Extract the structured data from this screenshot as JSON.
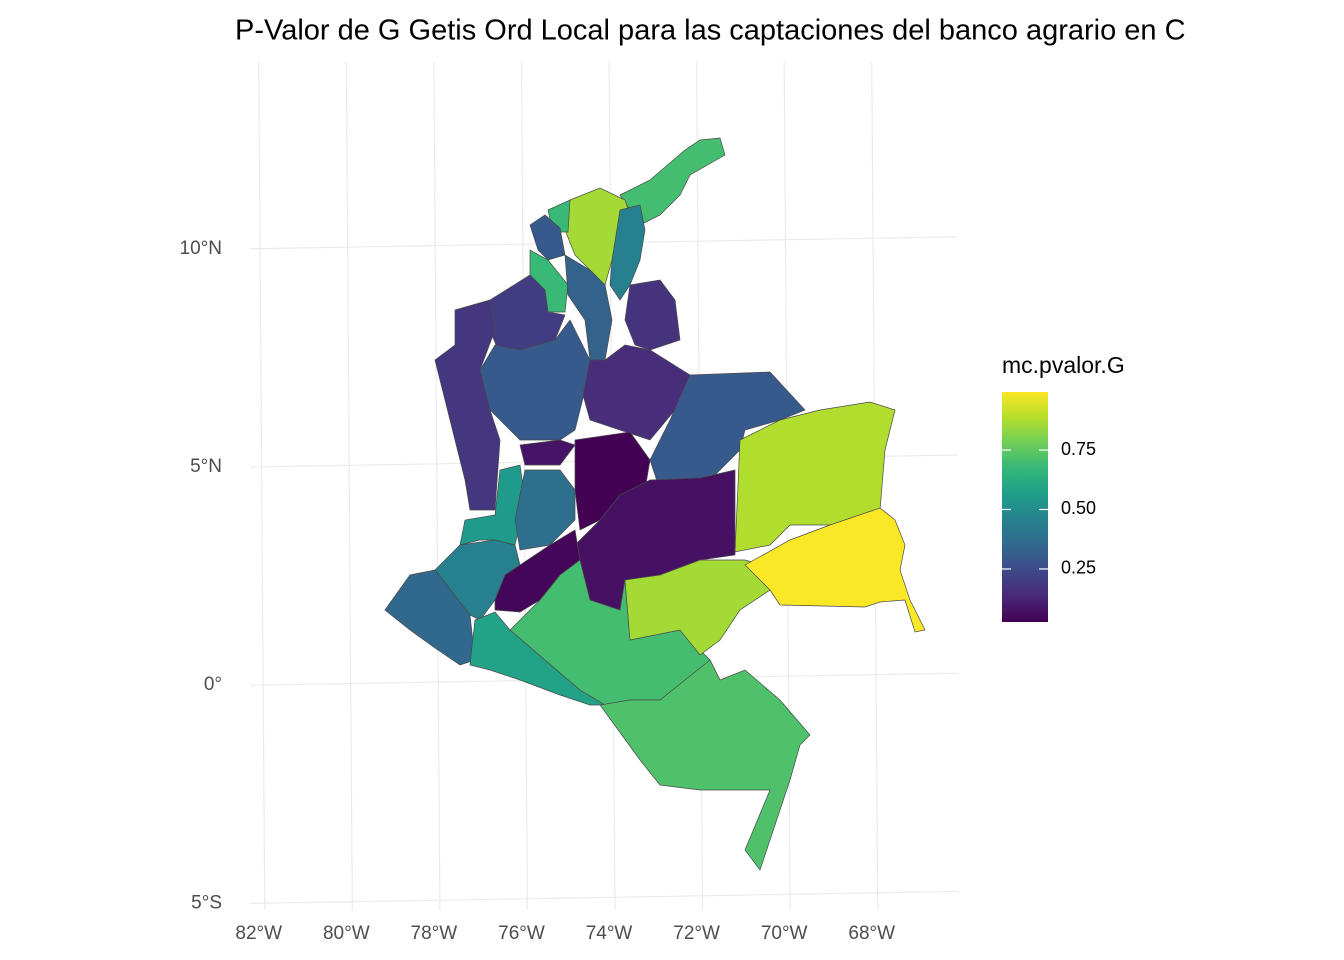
{
  "chart_data": {
    "type": "choropleth",
    "title": "P-Valor de G Getis Ord Local para las captaciones del banco agrario en C",
    "values": [
      0.7,
      0.86,
      0.45,
      0.68,
      0.3,
      0.68,
      0.33,
      0.2,
      0.17,
      0.18,
      0.3,
      0.15,
      0.3,
      0.88,
      0.03,
      0.08,
      0.55,
      0.38,
      0.07,
      0.04,
      0.45,
      0.35,
      0.58,
      0.7,
      0.86,
      0.99,
      0.72
    ],
    "colormap": "viridis",
    "clim": [
      0.027,
      0.994
    ],
    "legend_title": "mc.pvalor.G",
    "legend_ticks": [
      0.25,
      {
        "value": 0.5,
        "label": "0.50"
      },
      0.75
    ],
    "xlim": [
      -82.2,
      -66.03
    ],
    "ylim": [
      -5.15,
      14.28
    ],
    "xticks": [
      {
        "value": -82,
        "label": "82°W"
      },
      {
        "value": -80,
        "label": "80°W"
      },
      {
        "value": -78,
        "label": "78°W"
      },
      {
        "value": -76,
        "label": "76°W"
      },
      {
        "value": -74,
        "label": "74°W"
      },
      {
        "value": -72,
        "label": "72°W"
      },
      {
        "value": -70,
        "label": "70°W"
      },
      {
        "value": -68,
        "label": "68°W"
      }
    ],
    "yticks": [
      {
        "value": 10,
        "label": "10°N"
      },
      {
        "value": 5,
        "label": "5°N"
      },
      {
        "value": 0,
        "label": "0°"
      },
      {
        "value": -5,
        "label": "5°S"
      }
    ],
    "grid": true
  }
}
